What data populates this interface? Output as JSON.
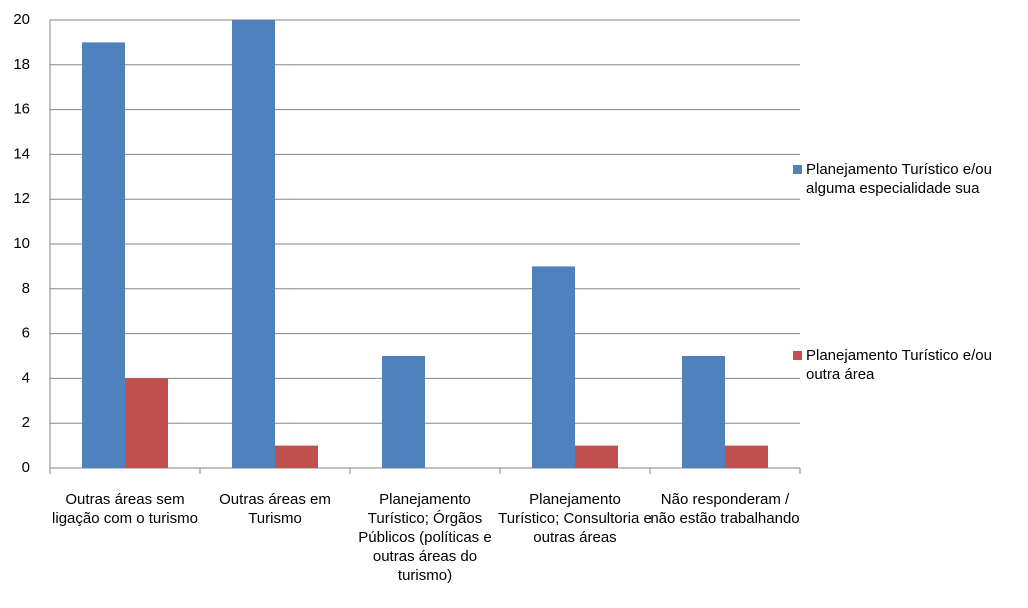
{
  "chart_data": {
    "type": "bar",
    "categories": [
      "Outras áreas sem ligação com o turismo",
      "Outras áreas em Turismo",
      "Planejamento Turístico; Órgãos Públicos (políticas e outras áreas do turismo)",
      "Planejamento Turístico; Consultoria e outras áreas",
      "Não responderam / não estão trabalhando"
    ],
    "series": [
      {
        "name": "Planejamento Turístico e/ou alguma especialidade sua",
        "color": "#4f81bd",
        "values": [
          19,
          20,
          5,
          9,
          5
        ]
      },
      {
        "name": "Planejamento Turístico e/ou outra área",
        "color": "#c0504d",
        "values": [
          4,
          1,
          0,
          1,
          1
        ]
      }
    ],
    "ylim": [
      0,
      20
    ],
    "yticks": [
      0,
      2,
      4,
      6,
      8,
      10,
      12,
      14,
      16,
      18,
      20
    ],
    "grid": true,
    "legend": "right"
  }
}
